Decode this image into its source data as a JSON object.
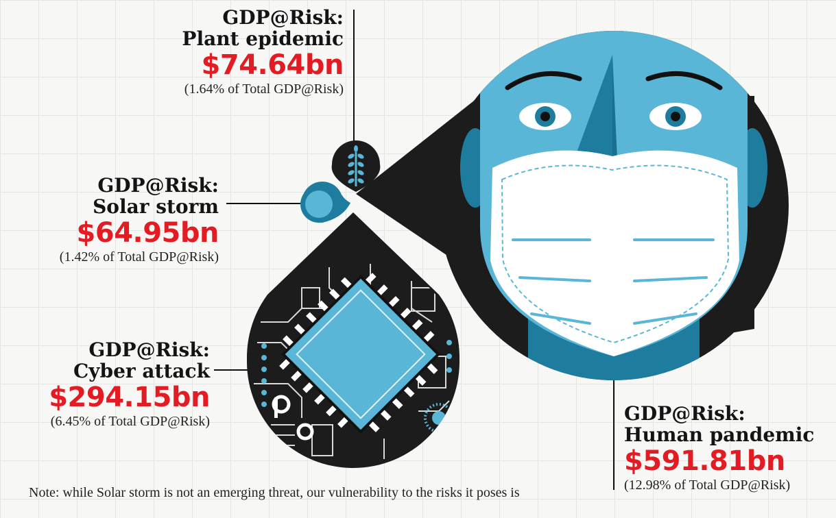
{
  "risks": {
    "plant": {
      "head1": "GDP@Risk:",
      "head2": "Plant epidemic",
      "value": "$74.64bn",
      "pct": "(1.64% of Total GDP@Risk)",
      "icon": "wheat-icon"
    },
    "solar": {
      "head1": "GDP@Risk:",
      "head2": "Solar storm",
      "value": "$64.95bn",
      "pct": "(1.42% of Total GDP@Risk)",
      "icon": "sun-icon"
    },
    "cyber": {
      "head1": "GDP@Risk:",
      "head2": "Cyber attack",
      "value": "$294.15bn",
      "pct": "(6.45% of Total GDP@Risk)",
      "icon": "microchip-icon"
    },
    "pandemic": {
      "head1": "GDP@Risk:",
      "head2": "Human pandemic",
      "value": "$591.81bn",
      "pct": "(12.98% of Total GDP@Risk)",
      "icon": "masked-face-icon"
    }
  },
  "note": "Note: while Solar storm is not an emerging threat, our vulnerability to the risks it poses is",
  "colors": {
    "accent_red": "#e31b23",
    "skin_blue": "#5ab6d6",
    "dark_blue": "#1e7d9e",
    "mask_white": "#ffffff",
    "black": "#1c1c1c"
  }
}
